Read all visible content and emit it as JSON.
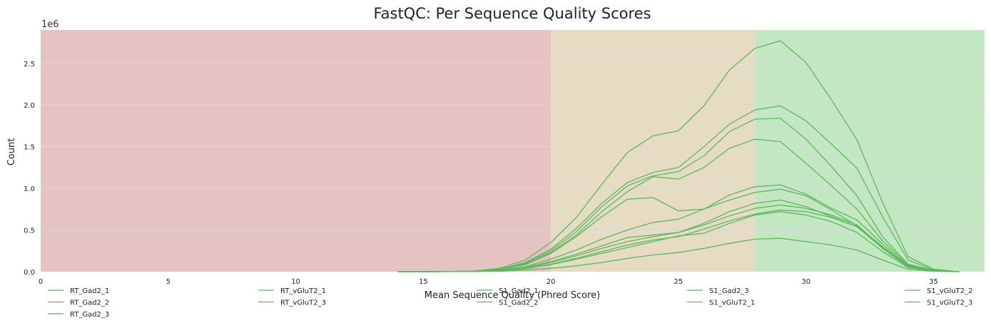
{
  "chart_data": {
    "type": "line",
    "title": "FastQC: Per Sequence Quality Scores",
    "xlabel": "Mean Sequence Quality (Phred Score)",
    "ylabel": "Count",
    "y_offset_label": "1e6",
    "xlim": [
      0,
      37
    ],
    "ylim": [
      0,
      2900000
    ],
    "x_ticks": [
      0,
      5,
      10,
      15,
      20,
      25,
      30,
      35
    ],
    "y_ticks": [
      0,
      500000,
      1000000,
      1500000,
      2000000,
      2500000
    ],
    "y_tick_labels": [
      "0.0",
      "0.5",
      "1.0",
      "1.5",
      "2.0",
      "2.5"
    ],
    "grid": "horizontal",
    "legend_placement": "bottom",
    "colors": {
      "line": "#5cb85c",
      "zone_fail": "#e6c3c3",
      "zone_warn": "#e6dcc3",
      "zone_pass": "#c3e6c3",
      "grid": "#d8d8d8"
    },
    "zones": [
      {
        "from": 0,
        "to": 20,
        "color_key": "zone_fail"
      },
      {
        "from": 20,
        "to": 28,
        "color_key": "zone_warn"
      },
      {
        "from": 28,
        "to": 37,
        "color_key": "zone_pass"
      }
    ],
    "x": [
      14,
      15,
      16,
      17,
      18,
      19,
      20,
      21,
      22,
      23,
      24,
      25,
      26,
      27,
      28,
      29,
      30,
      31,
      32,
      33,
      34,
      35,
      36
    ],
    "series": [
      {
        "name": "RT_Gad2_1",
        "values": [
          0,
          0,
          2000,
          8000,
          40000,
          140000,
          350000,
          650000,
          1050000,
          1430000,
          1630000,
          1690000,
          1990000,
          2420000,
          2680000,
          2770000,
          2510000,
          2060000,
          1580000,
          830000,
          180000,
          30000,
          0
        ]
      },
      {
        "name": "RT_Gad2_2",
        "values": [
          0,
          0,
          2000,
          6000,
          30000,
          110000,
          270000,
          520000,
          820000,
          1070000,
          1190000,
          1250000,
          1500000,
          1770000,
          1940000,
          1990000,
          1810000,
          1530000,
          1240000,
          660000,
          140000,
          20000,
          0
        ]
      },
      {
        "name": "RT_Gad2_3",
        "values": [
          0,
          0,
          2000,
          6000,
          28000,
          100000,
          250000,
          480000,
          780000,
          1030000,
          1150000,
          1200000,
          1390000,
          1680000,
          1830000,
          1840000,
          1590000,
          1260000,
          910000,
          420000,
          90000,
          15000,
          0
        ]
      },
      {
        "name": "RT_vGluT2_1",
        "values": [
          0,
          0,
          1500,
          5000,
          25000,
          90000,
          230000,
          440000,
          720000,
          960000,
          1140000,
          1110000,
          1250000,
          1480000,
          1590000,
          1560000,
          1300000,
          1030000,
          750000,
          370000,
          80000,
          10000,
          0
        ]
      },
      {
        "name": "RT_vGluT2_3",
        "values": [
          0,
          0,
          1500,
          5000,
          24000,
          85000,
          220000,
          420000,
          660000,
          870000,
          890000,
          730000,
          750000,
          920000,
          1020000,
          1040000,
          930000,
          760000,
          620000,
          330000,
          70000,
          10000,
          0
        ]
      },
      {
        "name": "S1_Gad2_1",
        "values": [
          0,
          0,
          1000,
          4000,
          18000,
          60000,
          150000,
          260000,
          390000,
          500000,
          590000,
          630000,
          750000,
          860000,
          950000,
          990000,
          910000,
          740000,
          550000,
          300000,
          65000,
          10000,
          0
        ]
      },
      {
        "name": "S1_Gad2_2",
        "values": [
          0,
          0,
          1000,
          3000,
          15000,
          50000,
          120000,
          210000,
          310000,
          410000,
          440000,
          470000,
          580000,
          720000,
          820000,
          860000,
          780000,
          660000,
          540000,
          290000,
          60000,
          10000,
          0
        ]
      },
      {
        "name": "S1_Gad2_3",
        "values": [
          0,
          0,
          1000,
          3000,
          14000,
          45000,
          110000,
          190000,
          280000,
          360000,
          420000,
          470000,
          560000,
          670000,
          760000,
          800000,
          760000,
          680000,
          560000,
          290000,
          60000,
          10000,
          0
        ]
      },
      {
        "name": "S1_vGluT2_1",
        "values": [
          0,
          0,
          800,
          2500,
          12000,
          40000,
          90000,
          160000,
          240000,
          320000,
          380000,
          420000,
          510000,
          610000,
          690000,
          740000,
          720000,
          650000,
          540000,
          280000,
          55000,
          8000,
          0
        ]
      },
      {
        "name": "S1_vGluT2_2",
        "values": [
          0,
          0,
          800,
          2500,
          11000,
          38000,
          85000,
          150000,
          220000,
          290000,
          360000,
          430000,
          460000,
          580000,
          680000,
          720000,
          680000,
          600000,
          470000,
          240000,
          50000,
          8000,
          0
        ]
      },
      {
        "name": "S1_vGluT2_3",
        "values": [
          0,
          0,
          500,
          1500,
          6000,
          20000,
          40000,
          70000,
          110000,
          160000,
          200000,
          230000,
          280000,
          340000,
          390000,
          400000,
          360000,
          320000,
          260000,
          140000,
          30000,
          5000,
          0
        ]
      }
    ],
    "legend_columns": [
      [
        "RT_Gad2_1",
        "RT_Gad2_2",
        "RT_Gad2_3"
      ],
      [
        "RT_vGluT2_1",
        "RT_vGluT2_3"
      ],
      [
        "S1_Gad2_1",
        "S1_Gad2_2"
      ],
      [
        "S1_Gad2_3",
        "S1_vGluT2_1"
      ],
      [
        "S1_vGluT2_2",
        "S1_vGluT2_3"
      ]
    ]
  }
}
